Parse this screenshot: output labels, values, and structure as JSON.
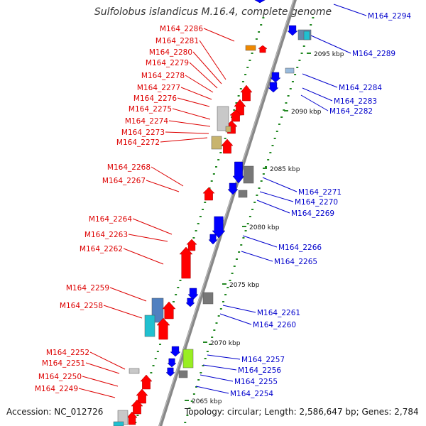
{
  "title": "Sulfolobus islandicus M.16.4, complete genome",
  "accession": "Accession: NC_012726",
  "topology": "Topology: circular; Length: 2,586,647 bp; Genes: 2,784",
  "colors": {
    "forward_label": "#dd0000",
    "reverse_label": "#0000cc",
    "backbone": "#888888",
    "tick": "#228822",
    "cds_forward": "#ff0000",
    "cds_reverse": "#0000ff",
    "gray_gene": "#777777",
    "tan_gene": "#c8b46e",
    "steelblue_gene": "#5080c0",
    "cyan_gene": "#20c0d0",
    "lime_gene": "#99ee22",
    "orange_gene": "#ee8800"
  },
  "kbp_labels": [
    "2095 kbp",
    "2090 kbp",
    "2085 kbp",
    "2080 kbp",
    "2075 kbp",
    "2070 kbp",
    "2065 kbp"
  ],
  "forward_genes": [
    "M164_2286",
    "M164_2281",
    "M164_2280",
    "M164_2279",
    "M164_2278",
    "M164_2277",
    "M164_2276",
    "M164_2275",
    "M164_2274",
    "M164_2273",
    "M164_2272",
    "M164_2268",
    "M164_2267",
    "M164_2264",
    "M164_2263",
    "M164_2262",
    "M164_2259",
    "M164_2258",
    "M164_2252",
    "M164_2251",
    "M164_2250",
    "M164_2249"
  ],
  "reverse_genes": [
    "M164_2294",
    "M164_2289",
    "M164_2284",
    "M164_2283",
    "M164_2282",
    "M164_2271",
    "M164_2270",
    "M164_2269",
    "M164_2266",
    "M164_2265",
    "M164_2261",
    "M164_2260",
    "M164_2257",
    "M164_2256",
    "M164_2255",
    "M164_2254"
  ]
}
